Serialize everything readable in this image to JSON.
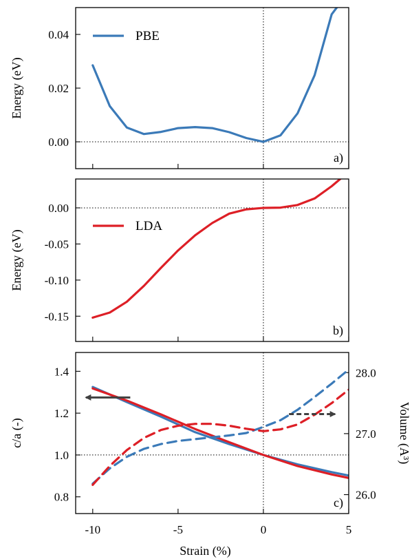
{
  "colors": {
    "pbe": "#3b7ab8",
    "lda": "#dd1f26",
    "arrow": "#404040"
  },
  "chart_data": [
    {
      "type": "line",
      "panel_label": "a)",
      "xlim": [
        -11,
        5
      ],
      "ylim": [
        -0.01,
        0.05
      ],
      "ylabel": "Energy (eV)",
      "yticks": [
        0.0,
        0.02,
        0.04
      ],
      "ytick_labels": [
        "0.00",
        "0.02",
        "0.04"
      ],
      "zero_line_y": 0,
      "legend": "top-left",
      "series": [
        {
          "name": "PBE",
          "color": "#3b7ab8",
          "x": [
            -10,
            -9,
            -8,
            -7,
            -6,
            -5,
            -4,
            -3,
            -2,
            -1,
            0,
            1,
            2,
            3,
            4,
            4.3
          ],
          "y": [
            0.0285,
            0.0133,
            0.0053,
            0.0029,
            0.0037,
            0.0051,
            0.0055,
            0.0051,
            0.0036,
            0.0014,
            0.0,
            0.0024,
            0.0106,
            0.0248,
            0.0475,
            0.05
          ]
        }
      ]
    },
    {
      "type": "line",
      "panel_label": "b)",
      "xlim": [
        -11,
        5
      ],
      "ylim": [
        -0.185,
        0.04
      ],
      "ylabel": "Energy (eV)",
      "yticks": [
        -0.15,
        -0.1,
        -0.05,
        0.0
      ],
      "ytick_labels": [
        "-0.15",
        "-0.10",
        "-0.05",
        "0.00"
      ],
      "zero_line_y": 0,
      "legend": "left",
      "series": [
        {
          "name": "LDA",
          "color": "#dd1f26",
          "x": [
            -10,
            -9,
            -8,
            -7,
            -6,
            -5,
            -4,
            -3,
            -2,
            -1,
            0,
            1,
            2,
            3,
            4,
            4.5
          ],
          "y": [
            -0.152,
            -0.145,
            -0.13,
            -0.108,
            -0.083,
            -0.059,
            -0.038,
            -0.021,
            -0.008,
            -0.002,
            0.0,
            0.0003,
            0.004,
            0.013,
            0.03,
            0.04
          ]
        }
      ]
    },
    {
      "type": "line",
      "panel_label": "c)",
      "xlim": [
        -11,
        5
      ],
      "ylim": [
        0.72,
        1.49
      ],
      "xlabel": "Strain (%)",
      "xticks": [
        -10,
        -5,
        0,
        5
      ],
      "xtick_labels": [
        "-10",
        "-5",
        "0",
        "5"
      ],
      "ylabel": "c/a (-)",
      "yticks": [
        0.8,
        1.0,
        1.2,
        1.4
      ],
      "ytick_labels": [
        "0.8",
        "1.0",
        "1.2",
        "1.4"
      ],
      "y2label": "Volume (A³)",
      "y2lim": [
        25.69,
        28.33
      ],
      "y2ticks": [
        26.0,
        27.0,
        28.0
      ],
      "y2tick_labels": [
        "26.0",
        "27.0",
        "28.0"
      ],
      "zero_line_y": 1.0,
      "series": [
        {
          "name": "c/a PBE",
          "axis": "left",
          "style": "solid",
          "color": "#3b7ab8",
          "x": [
            -10,
            -8,
            -6,
            -4,
            -2,
            0,
            2,
            4,
            5
          ],
          "y": [
            1.325,
            1.253,
            1.183,
            1.109,
            1.052,
            1.0,
            0.955,
            0.918,
            0.902
          ]
        },
        {
          "name": "c/a LDA",
          "axis": "left",
          "style": "solid",
          "color": "#dd1f26",
          "x": [
            -10,
            -8,
            -6,
            -4,
            -2,
            0,
            2,
            4,
            5
          ],
          "y": [
            1.318,
            1.26,
            1.194,
            1.124,
            1.061,
            1.0,
            0.947,
            0.907,
            0.89
          ]
        },
        {
          "name": "Volume PBE",
          "axis": "right",
          "style": "dashed",
          "color": "#3b7ab8",
          "x": [
            -10,
            -9,
            -8,
            -7,
            -6,
            -5,
            -4,
            -3,
            -2,
            -1,
            0,
            1,
            2,
            3,
            4,
            5
          ],
          "y": [
            26.18,
            26.43,
            26.62,
            26.75,
            26.83,
            26.88,
            26.91,
            26.94,
            26.97,
            27.01,
            27.11,
            27.22,
            27.39,
            27.6,
            27.82,
            28.05
          ]
        },
        {
          "name": "Volume LDA",
          "axis": "right",
          "style": "dashed",
          "color": "#dd1f26",
          "x": [
            -10,
            -9,
            -8,
            -7,
            -6,
            -5,
            -4,
            -3,
            -2,
            -1,
            0,
            1,
            2,
            3,
            4,
            5
          ],
          "y": [
            26.16,
            26.47,
            26.73,
            26.93,
            27.06,
            27.13,
            27.16,
            27.16,
            27.13,
            27.08,
            27.04,
            27.07,
            27.15,
            27.31,
            27.5,
            27.72
          ]
        }
      ],
      "annotations": [
        {
          "type": "arrow",
          "style": "solid",
          "x_from": -7.8,
          "x_to": -10.4,
          "y": 1.275,
          "axis": "left",
          "meaning": "c/a curves use left axis"
        },
        {
          "type": "arrow",
          "style": "dashed",
          "x_from": 1.5,
          "x_to": 4.2,
          "y": 27.32,
          "axis": "right",
          "meaning": "volume curves use right axis"
        }
      ]
    }
  ]
}
